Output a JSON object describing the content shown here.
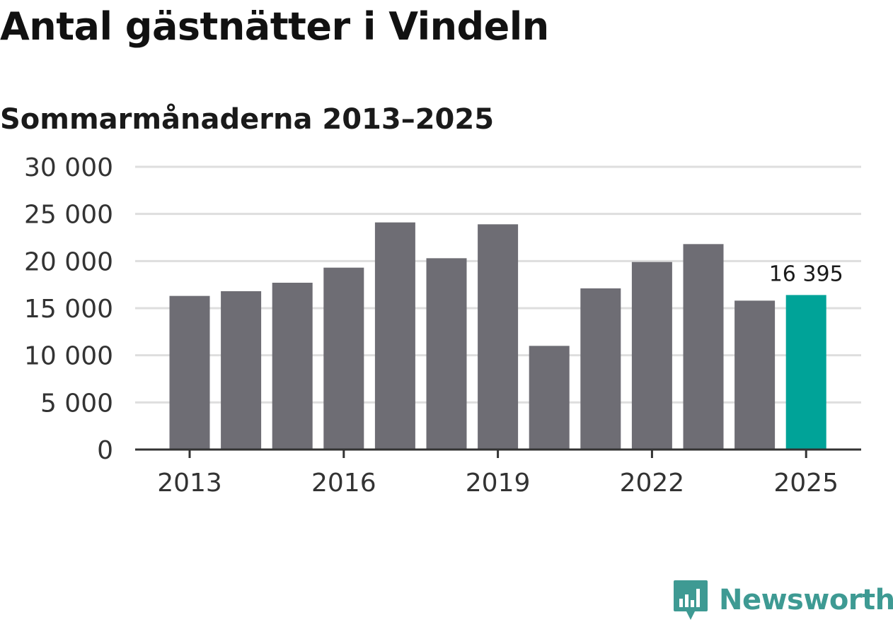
{
  "title": "Antal gästnätter i Vindeln",
  "subtitle": "Sommarmånaderna 2013–2025",
  "chart_data": {
    "type": "bar",
    "categories": [
      "2013",
      "2014",
      "2015",
      "2016",
      "2017",
      "2018",
      "2019",
      "2020",
      "2021",
      "2022",
      "2023",
      "2024",
      "2025"
    ],
    "values": [
      16300,
      16800,
      17700,
      19300,
      24100,
      20300,
      23900,
      11000,
      17100,
      19900,
      21800,
      15800,
      16395
    ],
    "ylim": [
      0,
      30000
    ],
    "yticks": [
      0,
      5000,
      10000,
      15000,
      20000,
      25000,
      30000
    ],
    "ytick_labels": [
      "0",
      "5 000",
      "10 000",
      "15 000",
      "20 000",
      "25 000",
      "30 000"
    ],
    "xtick_labels": [
      "2013",
      "2016",
      "2019",
      "2022",
      "2025"
    ],
    "data_labels": [
      {
        "category": "2025",
        "text": "16 395"
      }
    ],
    "highlight_category": "2025",
    "grid": true,
    "colors": {
      "bar": "#6e6d74",
      "highlight": "#00a398",
      "grid": "#dedede",
      "axis": "#333333"
    }
  },
  "logo": {
    "text": "Newsworthy",
    "color": "#3e9a93",
    "icon": "bar-chart-speech-bubble-icon"
  }
}
